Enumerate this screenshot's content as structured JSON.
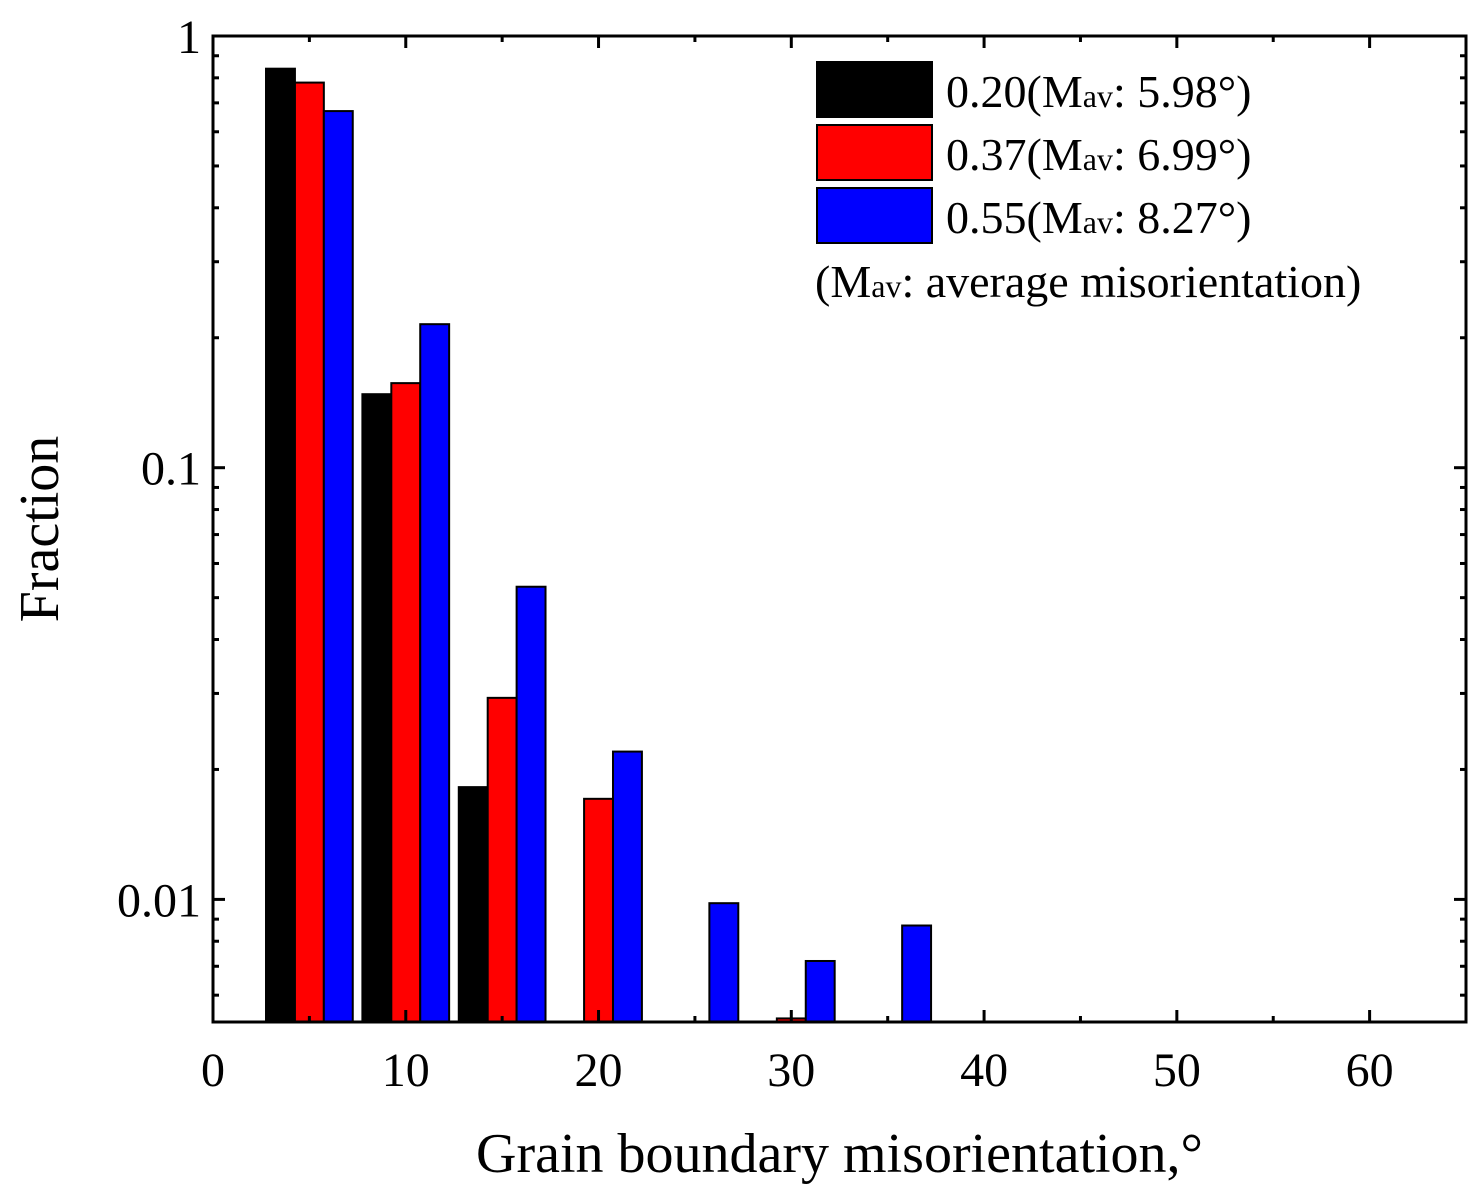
{
  "chart_data": {
    "type": "bar",
    "title": "",
    "xlabel": "Grain boundary misorientation,°",
    "ylabel": "Fraction",
    "xlim": [
      0,
      65
    ],
    "ylim": [
      0.0052,
      1
    ],
    "yscale": "log",
    "x_ticks": [
      0,
      10,
      20,
      30,
      40,
      50,
      60
    ],
    "x_minor_ticks": [
      5,
      15,
      25,
      35,
      45,
      55,
      65
    ],
    "x_tick_labels": [
      "0",
      "10",
      "20",
      "30",
      "40",
      "50",
      "60"
    ],
    "y_ticks": [
      1,
      0.1,
      0.01
    ],
    "y_tick_labels": [
      "1",
      "0.1",
      "0.01"
    ],
    "bin_centers": [
      5,
      10,
      15,
      20,
      25,
      30,
      35,
      40
    ],
    "bar_width": 1.5,
    "series": [
      {
        "name": "0.20",
        "legend_prefix": "0.20(M",
        "legend_sub": "av",
        "legend_suffix": ": 5.98°)",
        "color": "#000000",
        "values": [
          0.84,
          0.148,
          0.0182,
          null,
          null,
          null,
          null,
          null
        ]
      },
      {
        "name": "0.37",
        "legend_prefix": "0.37(M",
        "legend_sub": "av",
        "legend_suffix": ": 6.99°)",
        "color": "#ff0000",
        "values": [
          0.78,
          0.157,
          0.0293,
          0.0171,
          null,
          0.0053,
          null,
          null
        ]
      },
      {
        "name": "0.55",
        "legend_prefix": "0.55(M",
        "legend_sub": "av",
        "legend_suffix": ": 8.27°)",
        "color": "#0000ff",
        "values": [
          0.67,
          0.215,
          0.053,
          0.022,
          0.0098,
          0.0072,
          0.0087,
          0.0051
        ]
      }
    ],
    "legend_note": {
      "prefix": "(M",
      "sub": "av",
      "suffix": ": average misorientation)"
    },
    "legend_position": "top-right"
  }
}
